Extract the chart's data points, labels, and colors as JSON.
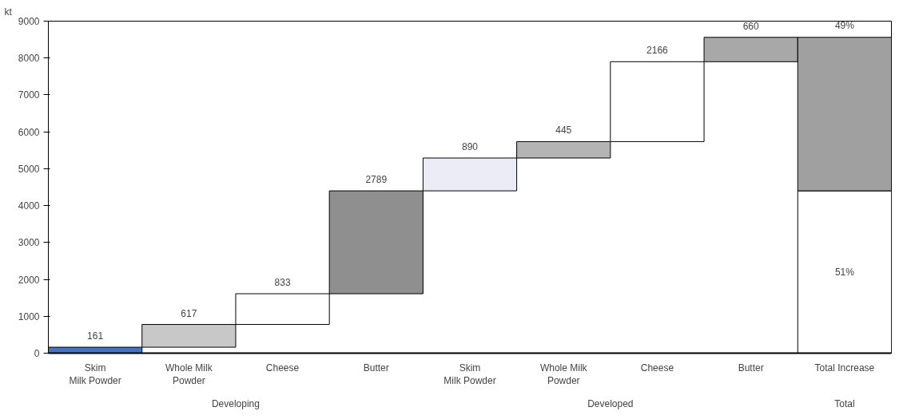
{
  "chart_data": {
    "type": "bar",
    "ylabel": "kt",
    "categories": [
      "Skim\nMilk Powder",
      "Whole Milk\nPowder",
      "Cheese",
      "Butter",
      "Skim\nMilk Powder",
      "Whole Milk\nPowder",
      "Cheese",
      "Butter",
      "Total Increase"
    ],
    "series": [
      {
        "values": [
          161,
          617,
          833,
          2789,
          890,
          445,
          2166,
          660,
          4400
        ],
        "base": [
          0,
          161,
          778,
          1611,
          4400,
          5290,
          5735,
          7901,
          0
        ],
        "colors": [
          "#4472c4",
          "#c8c8c8",
          "#ffffff",
          "#8f8f8f",
          "#ececf6",
          "#b4b4b4",
          "#ffffff",
          "#a8a8a8",
          "#ffffff"
        ],
        "value_labels": [
          "161",
          "617",
          "833",
          "2789",
          "890",
          "445",
          "2166",
          "660",
          null
        ]
      },
      {
        "values": [
          null,
          null,
          null,
          null,
          null,
          null,
          null,
          null,
          4161
        ],
        "base": [
          null,
          null,
          null,
          null,
          null,
          null,
          null,
          null,
          4400
        ],
        "color": "#a0a0a0"
      }
    ],
    "ylim": [
      0,
      9000
    ],
    "yticks": [
      0,
      1000,
      2000,
      3000,
      4000,
      5000,
      6000,
      7000,
      8000,
      9000
    ],
    "grid": false,
    "annotations": [
      "Developing",
      "Developed",
      "Total",
      "51%",
      "49%"
    ]
  }
}
